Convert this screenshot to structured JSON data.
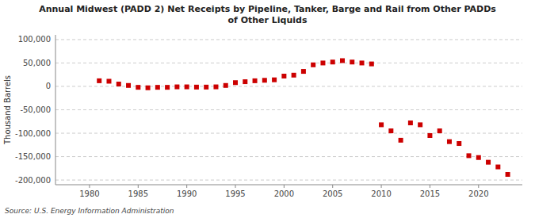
{
  "chart_data": {
    "type": "scatter",
    "title": "Annual Midwest (PADD 2) Net Receipts by Pipeline, Tanker, Barge and Rail from Other PADDs\nof Other Liquids",
    "ylabel": "Thousand Barrels",
    "source": "Source: U.S. Energy Information Administration",
    "color": "#cc0000",
    "marker": "square",
    "grid": true,
    "xlim": [
      1976.5,
      2024.5
    ],
    "ylim": [
      -210000,
      110000
    ],
    "xticks": [
      1980,
      1985,
      1990,
      1995,
      2000,
      2005,
      2010,
      2015,
      2020
    ],
    "yticks": [
      {
        "value": -200000,
        "label": "-200,000"
      },
      {
        "value": -150000,
        "label": "-150,000"
      },
      {
        "value": -100000,
        "label": "-100,000"
      },
      {
        "value": -50000,
        "label": "-50,000"
      },
      0,
      {
        "value": 50000,
        "label": "50,000"
      },
      {
        "value": 100000,
        "label": "100,000"
      }
    ],
    "x": [
      1981,
      1982,
      1983,
      1984,
      1985,
      1986,
      1987,
      1988,
      1989,
      1990,
      1991,
      1992,
      1993,
      1994,
      1995,
      1996,
      1997,
      1998,
      1999,
      2000,
      2001,
      2002,
      2003,
      2004,
      2005,
      2006,
      2007,
      2008,
      2009,
      2010,
      2011,
      2012,
      2013,
      2014,
      2015,
      2016,
      2017,
      2018,
      2019,
      2020,
      2021,
      2022,
      2023
    ],
    "values": [
      12000,
      11000,
      5000,
      2000,
      -2000,
      -3000,
      -2000,
      -2000,
      -1000,
      -1000,
      -1500,
      -1500,
      -1000,
      2000,
      8000,
      10000,
      12000,
      13000,
      14000,
      22000,
      24000,
      32000,
      46000,
      50000,
      52000,
      55000,
      52000,
      50000,
      48000,
      -82000,
      -95000,
      -115000,
      -78000,
      -82000,
      -105000,
      -95000,
      -118000,
      -122000,
      -148000,
      -152000,
      -162000,
      -172000,
      -188000
    ]
  }
}
